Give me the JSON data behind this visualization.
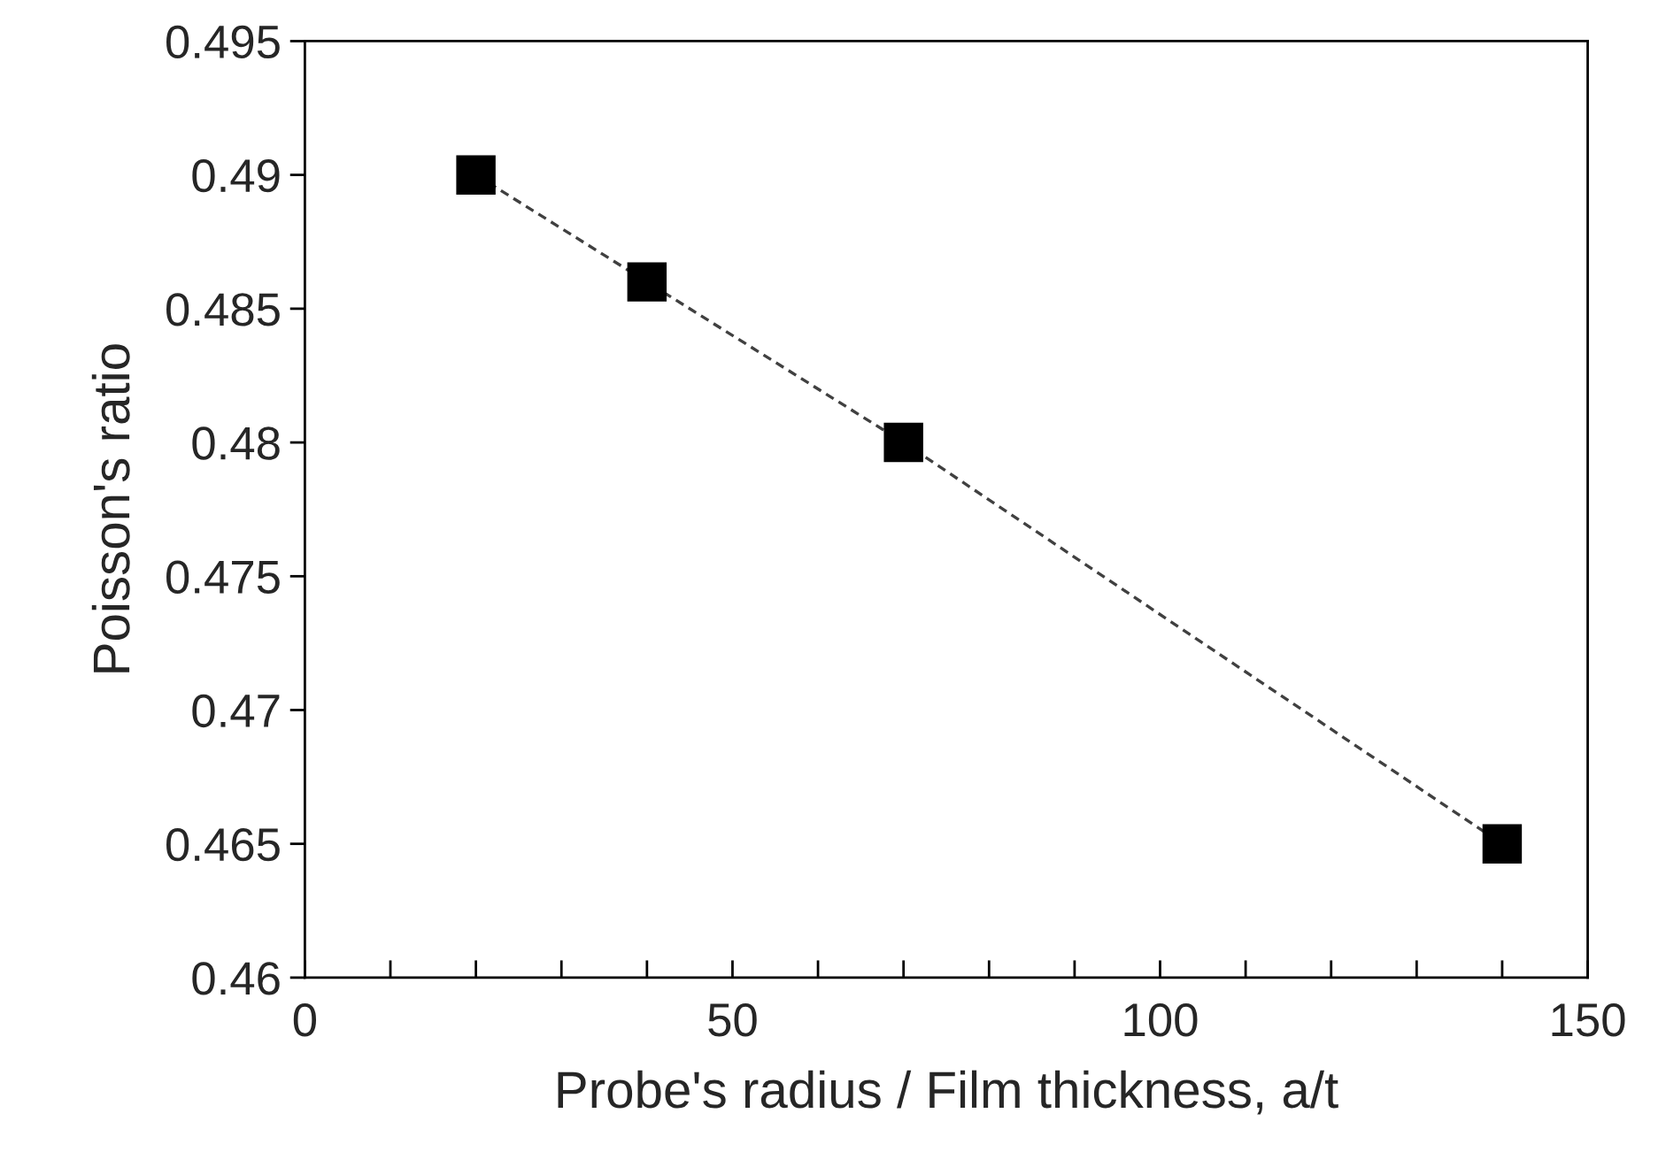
{
  "chart_data": {
    "type": "line",
    "xlabel": "Probe's radius / Film thickness, a/t",
    "ylabel": "Poisson's ratio",
    "series": [
      {
        "color": "#000000",
        "x": [
          20,
          40,
          70,
          140
        ],
        "values": [
          0.49,
          0.486,
          0.48,
          0.465
        ]
      }
    ],
    "marker": "square",
    "line_style": "dashed",
    "grid": false,
    "legend": false,
    "xlim": [
      0,
      150
    ],
    "xticks": [
      0,
      50,
      100,
      150
    ],
    "ylim": [
      0.46,
      0.495
    ],
    "yticks": [
      {
        "value": 0.46,
        "label": "0.46"
      },
      {
        "value": 0.465,
        "label": "0.465"
      },
      {
        "value": 0.47,
        "label": "0.47"
      },
      {
        "value": 0.475,
        "label": "0.475"
      },
      {
        "value": 0.48,
        "label": "0.48"
      },
      {
        "value": 0.485,
        "label": "0.485"
      },
      {
        "value": 0.49,
        "label": "0.49"
      },
      {
        "value": 0.495,
        "label": "0.495"
      }
    ]
  }
}
